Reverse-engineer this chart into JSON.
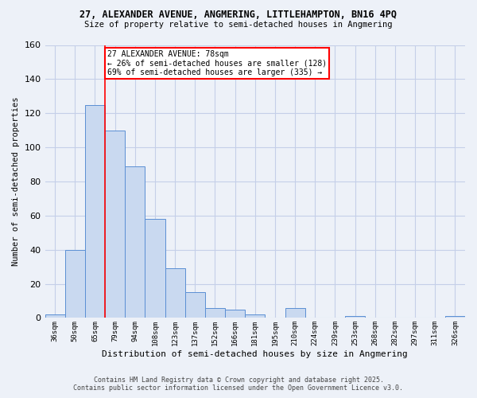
{
  "title_line1": "27, ALEXANDER AVENUE, ANGMERING, LITTLEHAMPTON, BN16 4PQ",
  "title_line2": "Size of property relative to semi-detached houses in Angmering",
  "xlabel": "Distribution of semi-detached houses by size in Angmering",
  "ylabel": "Number of semi-detached properties",
  "bar_labels": [
    "36sqm",
    "50sqm",
    "65sqm",
    "79sqm",
    "94sqm",
    "108sqm",
    "123sqm",
    "137sqm",
    "152sqm",
    "166sqm",
    "181sqm",
    "195sqm",
    "210sqm",
    "224sqm",
    "239sqm",
    "253sqm",
    "268sqm",
    "282sqm",
    "297sqm",
    "311sqm",
    "326sqm"
  ],
  "bar_values": [
    2,
    40,
    125,
    110,
    89,
    58,
    29,
    15,
    6,
    5,
    2,
    0,
    6,
    0,
    0,
    1,
    0,
    0,
    0,
    0,
    1
  ],
  "bar_color": "#c9d9f0",
  "bar_edge_color": "#5b8fd4",
  "red_line_index": 3,
  "annotation_text": "27 ALEXANDER AVENUE: 78sqm\n← 26% of semi-detached houses are smaller (128)\n69% of semi-detached houses are larger (335) →",
  "annotation_box_color": "white",
  "annotation_box_edge_color": "red",
  "red_line_color": "red",
  "ylim": [
    0,
    160
  ],
  "yticks": [
    0,
    20,
    40,
    60,
    80,
    100,
    120,
    140,
    160
  ],
  "grid_color": "#c5cfe8",
  "background_color": "#edf1f8",
  "footer_line1": "Contains HM Land Registry data © Crown copyright and database right 2025.",
  "footer_line2": "Contains public sector information licensed under the Open Government Licence v3.0."
}
